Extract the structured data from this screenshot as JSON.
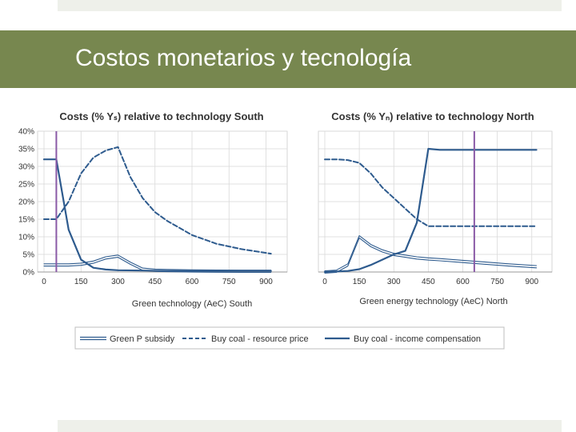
{
  "slide": {
    "title": "Costos monetarios y tecnología"
  },
  "colors": {
    "title_bg": "#77874f",
    "series": "#2e5b8e",
    "marker_line": "#8a5aa6",
    "grid": "#d9d9d9"
  },
  "legend": {
    "items": [
      "Green P subsidy",
      "Buy coal - resource price",
      "Buy coal - income compensation"
    ]
  },
  "chart_data": [
    {
      "type": "line",
      "title": "Costs (% Yₛ) relative to technology South",
      "xlabel": "Green technology (AeC) South",
      "ylabel": "",
      "xlim": [
        0,
        960
      ],
      "ylim": [
        0,
        40
      ],
      "x_ticks": [
        0,
        150,
        300,
        450,
        600,
        750,
        900
      ],
      "y_ticks": [
        0,
        5,
        10,
        15,
        20,
        25,
        30,
        35,
        40
      ],
      "y_tick_labels": [
        "0%",
        "5%",
        "10%",
        "15%",
        "20%",
        "25%",
        "30%",
        "35%",
        "40%"
      ],
      "grid": true,
      "marker_x": 50,
      "series": [
        {
          "name": "Green P subsidy",
          "style": "double",
          "x": [
            0,
            50,
            100,
            150,
            200,
            250,
            300,
            350,
            400,
            450,
            500,
            600,
            700,
            800,
            920
          ],
          "y": [
            2,
            2,
            2,
            2.2,
            2.8,
            4,
            4.5,
            2.5,
            0.8,
            0.5,
            0.4,
            0.3,
            0.25,
            0.2,
            0.2
          ]
        },
        {
          "name": "Buy coal - resource price",
          "style": "dashed",
          "x": [
            0,
            50,
            100,
            150,
            200,
            250,
            300,
            350,
            400,
            450,
            500,
            600,
            700,
            800,
            920
          ],
          "y": [
            15,
            15,
            20,
            28,
            32.5,
            34.5,
            35.5,
            27,
            21,
            17,
            14.5,
            10.5,
            8,
            6.5,
            5.2
          ]
        },
        {
          "name": "Buy coal - income compensation",
          "style": "solid",
          "x": [
            0,
            50,
            100,
            150,
            200,
            250,
            300,
            400,
            500,
            700,
            920
          ],
          "y": [
            32,
            32,
            12,
            3.5,
            1.2,
            0.7,
            0.5,
            0.4,
            0.3,
            0.3,
            0.3
          ]
        }
      ]
    },
    {
      "type": "line",
      "title": "Costs (% Yₙ) relative to technology North",
      "xlabel": "Green energy technology (AeC) North",
      "ylabel": "",
      "xlim": [
        0,
        960
      ],
      "ylim": [
        0,
        40
      ],
      "x_ticks": [
        0,
        150,
        300,
        450,
        600,
        750,
        900
      ],
      "y_ticks": [
        0,
        5,
        10,
        15,
        20,
        25,
        30,
        35,
        40
      ],
      "grid": true,
      "marker_x": 650,
      "series": [
        {
          "name": "Green P subsidy",
          "style": "double",
          "x": [
            0,
            50,
            100,
            150,
            200,
            250,
            300,
            350,
            400,
            450,
            500,
            600,
            700,
            800,
            920
          ],
          "y": [
            0,
            0.2,
            2,
            10,
            7.5,
            6,
            5,
            4.5,
            4,
            3.7,
            3.5,
            3,
            2.5,
            2,
            1.5
          ]
        },
        {
          "name": "Buy coal - resource price",
          "style": "dashed",
          "x": [
            0,
            50,
            100,
            150,
            200,
            250,
            300,
            350,
            400,
            450,
            500,
            600,
            700,
            800,
            920
          ],
          "y": [
            32,
            32,
            31.8,
            31,
            28,
            24,
            21,
            18,
            15,
            13,
            13,
            13,
            13,
            13,
            13
          ]
        },
        {
          "name": "Buy coal - income compensation",
          "style": "solid",
          "x": [
            0,
            100,
            150,
            200,
            250,
            300,
            350,
            400,
            450,
            500,
            600,
            700,
            800,
            920
          ],
          "y": [
            0,
            0.3,
            0.8,
            2,
            3.5,
            5,
            6,
            14,
            35,
            34.7,
            34.7,
            34.7,
            34.7,
            34.7
          ]
        }
      ]
    }
  ]
}
